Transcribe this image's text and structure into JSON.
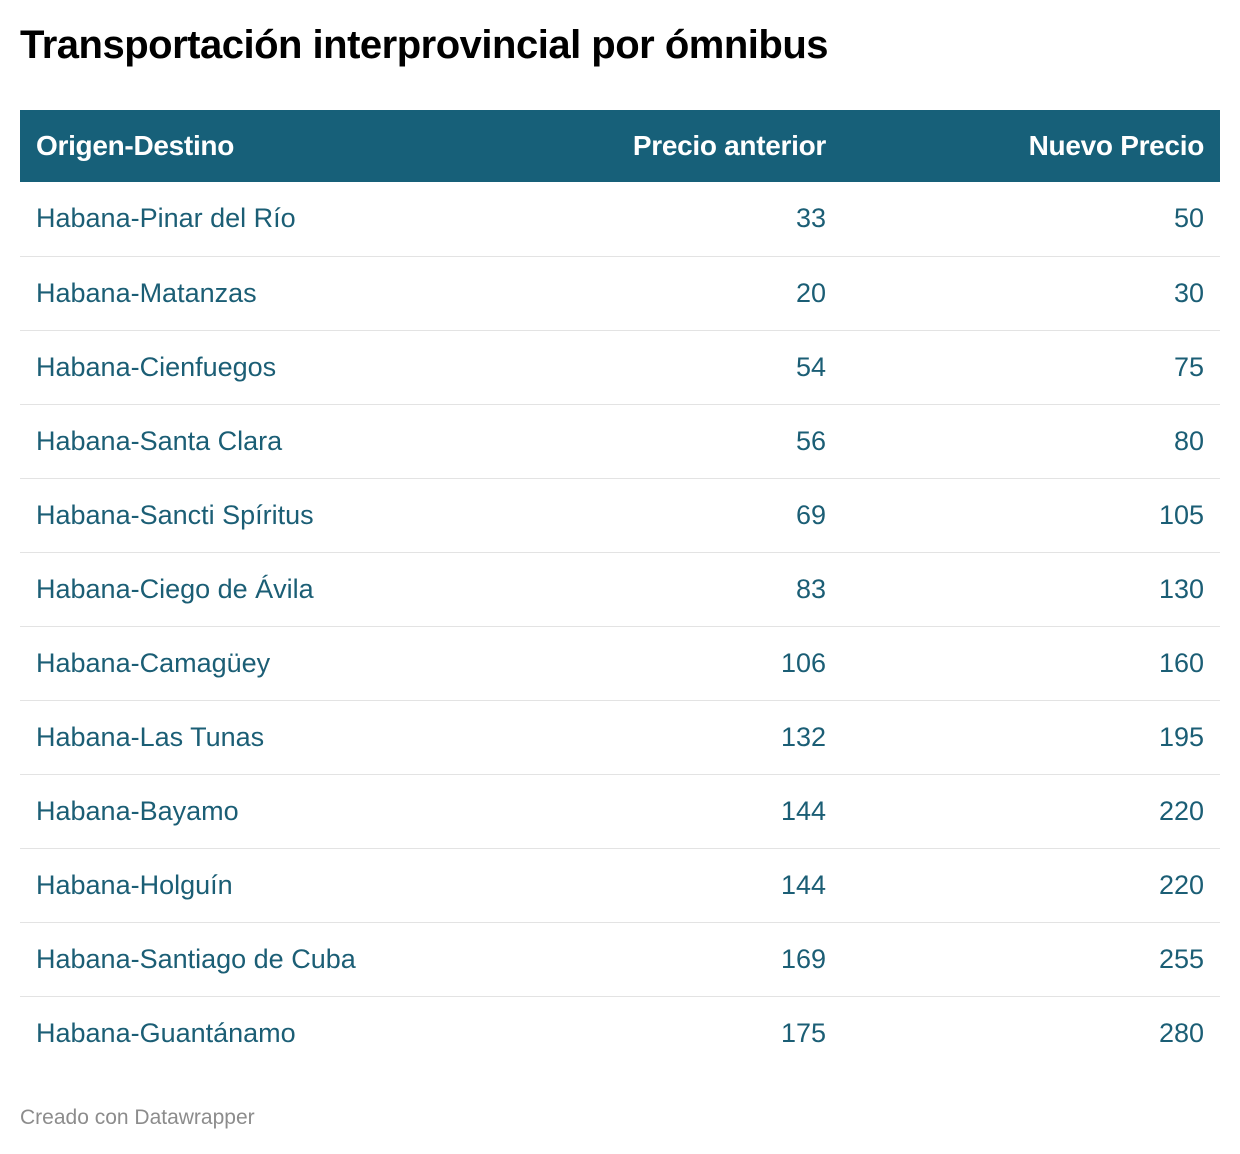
{
  "title": "Transportación interprovincial por ómnibus",
  "footer": "Creado con Datawrapper",
  "colors": {
    "header_bg": "#176079",
    "header_text": "#ffffff",
    "cell_text": "#1b5e75",
    "row_divider": "#e3e3e3"
  },
  "chart_data": {
    "type": "table",
    "title": "Transportación interprovincial por ómnibus",
    "columns": [
      "Origen-Destino",
      "Precio anterior",
      "Nuevo Precio"
    ],
    "rows": [
      [
        "Habana-Pinar del Río",
        "33",
        "50"
      ],
      [
        "Habana-Matanzas",
        "20",
        "30"
      ],
      [
        "Habana-Cienfuegos",
        "54",
        "75"
      ],
      [
        "Habana-Santa Clara",
        "56",
        "80"
      ],
      [
        "Habana-Sancti Spíritus",
        "69",
        "105"
      ],
      [
        "Habana-Ciego de Ávila",
        "83",
        "130"
      ],
      [
        "Habana-Camagüey",
        "106",
        "160"
      ],
      [
        "Habana-Las Tunas",
        "132",
        "195"
      ],
      [
        "Habana-Bayamo",
        "144",
        "220"
      ],
      [
        "Habana-Holguín",
        "144",
        "220"
      ],
      [
        "Habana-Santiago de Cuba",
        "169",
        "255"
      ],
      [
        "Habana-Guantánamo",
        "175",
        "280"
      ]
    ]
  }
}
